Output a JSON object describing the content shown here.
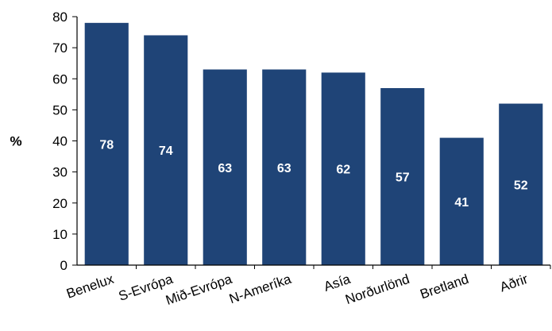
{
  "chart_data": {
    "type": "bar",
    "title": "",
    "xlabel": "",
    "ylabel": "%",
    "ylim": [
      0,
      80
    ],
    "yticks": [
      0,
      10,
      20,
      30,
      40,
      50,
      60,
      70,
      80
    ],
    "grid": false,
    "legend": "none",
    "categories": [
      "Benelux",
      "S-Evrópa",
      "Mið-Evrópa",
      "N-Ameríka",
      "Asía",
      "Norðurlönd",
      "Bretland",
      "Aðrir"
    ],
    "values": [
      78,
      74,
      63,
      63,
      62,
      57,
      41,
      52
    ],
    "data_labels": [
      "78",
      "74",
      "63",
      "63",
      "62",
      "57",
      "41",
      "52"
    ],
    "colors": {
      "bar": "#1F4477",
      "axis": "#000000",
      "label": "#ffffff"
    }
  }
}
